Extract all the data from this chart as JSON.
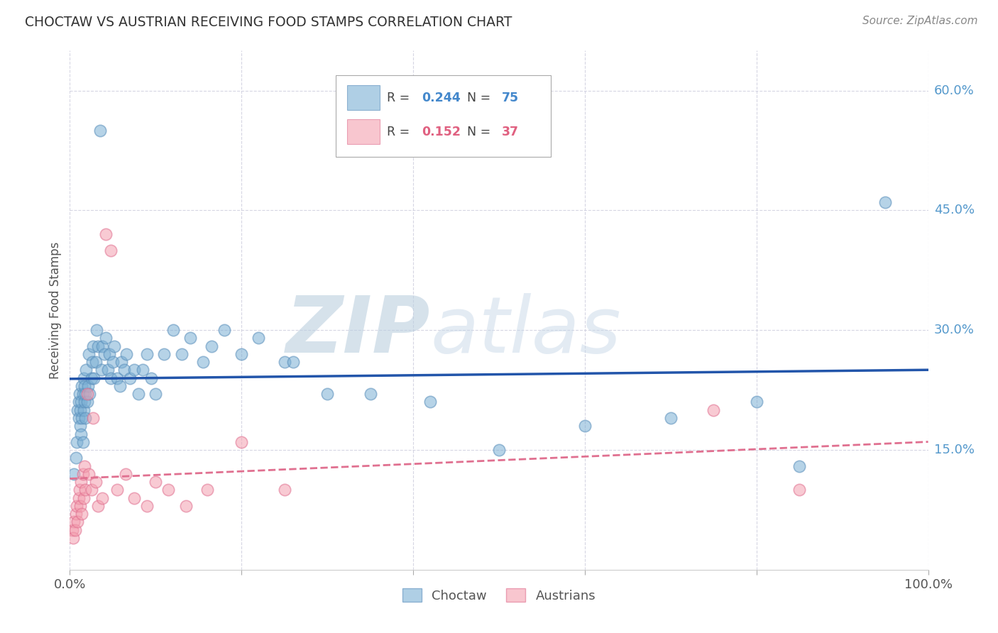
{
  "title": "CHOCTAW VS AUSTRIAN RECEIVING FOOD STAMPS CORRELATION CHART",
  "source": "Source: ZipAtlas.com",
  "ylabel": "Receiving Food Stamps",
  "xlim": [
    0.0,
    1.0
  ],
  "ylim": [
    0.0,
    0.65
  ],
  "xticks": [
    0.0,
    1.0
  ],
  "xticklabels": [
    "0.0%",
    "100.0%"
  ],
  "ytick_vals": [
    0.15,
    0.3,
    0.45,
    0.6
  ],
  "ytick_labels": [
    "15.0%",
    "30.0%",
    "45.0%",
    "60.0%"
  ],
  "choctaw_color": "#7BAFD4",
  "choctaw_edge": "#5A8FBB",
  "austrian_color": "#F4A0B0",
  "austrian_edge": "#E07090",
  "choctaw_line_color": "#2255AA",
  "austrian_line_color": "#E07090",
  "choctaw_R": "0.244",
  "choctaw_N": "75",
  "austrian_R": "0.152",
  "austrian_N": "37",
  "watermark_zip": "ZIP",
  "watermark_atlas": "atlas",
  "legend_label1": "Choctaw",
  "legend_label2": "Austrians",
  "choctaw_x": [
    0.005,
    0.007,
    0.008,
    0.009,
    0.01,
    0.01,
    0.011,
    0.012,
    0.012,
    0.013,
    0.013,
    0.014,
    0.014,
    0.015,
    0.015,
    0.016,
    0.016,
    0.017,
    0.017,
    0.018,
    0.018,
    0.019,
    0.02,
    0.021,
    0.022,
    0.023,
    0.025,
    0.026,
    0.027,
    0.028,
    0.03,
    0.031,
    0.033,
    0.035,
    0.037,
    0.038,
    0.04,
    0.042,
    0.044,
    0.046,
    0.048,
    0.05,
    0.052,
    0.055,
    0.058,
    0.06,
    0.063,
    0.066,
    0.07,
    0.075,
    0.08,
    0.085,
    0.09,
    0.095,
    0.1,
    0.11,
    0.12,
    0.13,
    0.14,
    0.155,
    0.165,
    0.18,
    0.2,
    0.22,
    0.25,
    0.26,
    0.3,
    0.35,
    0.42,
    0.5,
    0.6,
    0.7,
    0.8,
    0.85,
    0.95
  ],
  "choctaw_y": [
    0.12,
    0.14,
    0.16,
    0.2,
    0.21,
    0.19,
    0.22,
    0.18,
    0.2,
    0.17,
    0.21,
    0.19,
    0.23,
    0.16,
    0.22,
    0.2,
    0.24,
    0.21,
    0.23,
    0.19,
    0.22,
    0.25,
    0.21,
    0.23,
    0.27,
    0.22,
    0.24,
    0.26,
    0.28,
    0.24,
    0.26,
    0.3,
    0.28,
    0.55,
    0.25,
    0.28,
    0.27,
    0.29,
    0.25,
    0.27,
    0.24,
    0.26,
    0.28,
    0.24,
    0.23,
    0.26,
    0.25,
    0.27,
    0.24,
    0.25,
    0.22,
    0.25,
    0.27,
    0.24,
    0.22,
    0.27,
    0.3,
    0.27,
    0.29,
    0.26,
    0.28,
    0.3,
    0.27,
    0.29,
    0.26,
    0.26,
    0.22,
    0.22,
    0.21,
    0.15,
    0.18,
    0.19,
    0.21,
    0.13,
    0.46
  ],
  "austrian_x": [
    0.003,
    0.004,
    0.005,
    0.006,
    0.007,
    0.008,
    0.009,
    0.01,
    0.011,
    0.012,
    0.013,
    0.014,
    0.015,
    0.016,
    0.017,
    0.018,
    0.02,
    0.022,
    0.025,
    0.027,
    0.03,
    0.033,
    0.038,
    0.042,
    0.048,
    0.055,
    0.065,
    0.075,
    0.09,
    0.1,
    0.115,
    0.135,
    0.16,
    0.2,
    0.25,
    0.75,
    0.85
  ],
  "austrian_y": [
    0.05,
    0.04,
    0.06,
    0.05,
    0.07,
    0.08,
    0.06,
    0.09,
    0.1,
    0.08,
    0.11,
    0.07,
    0.12,
    0.09,
    0.13,
    0.1,
    0.22,
    0.12,
    0.1,
    0.19,
    0.11,
    0.08,
    0.09,
    0.42,
    0.4,
    0.1,
    0.12,
    0.09,
    0.08,
    0.11,
    0.1,
    0.08,
    0.1,
    0.16,
    0.1,
    0.2,
    0.1
  ]
}
